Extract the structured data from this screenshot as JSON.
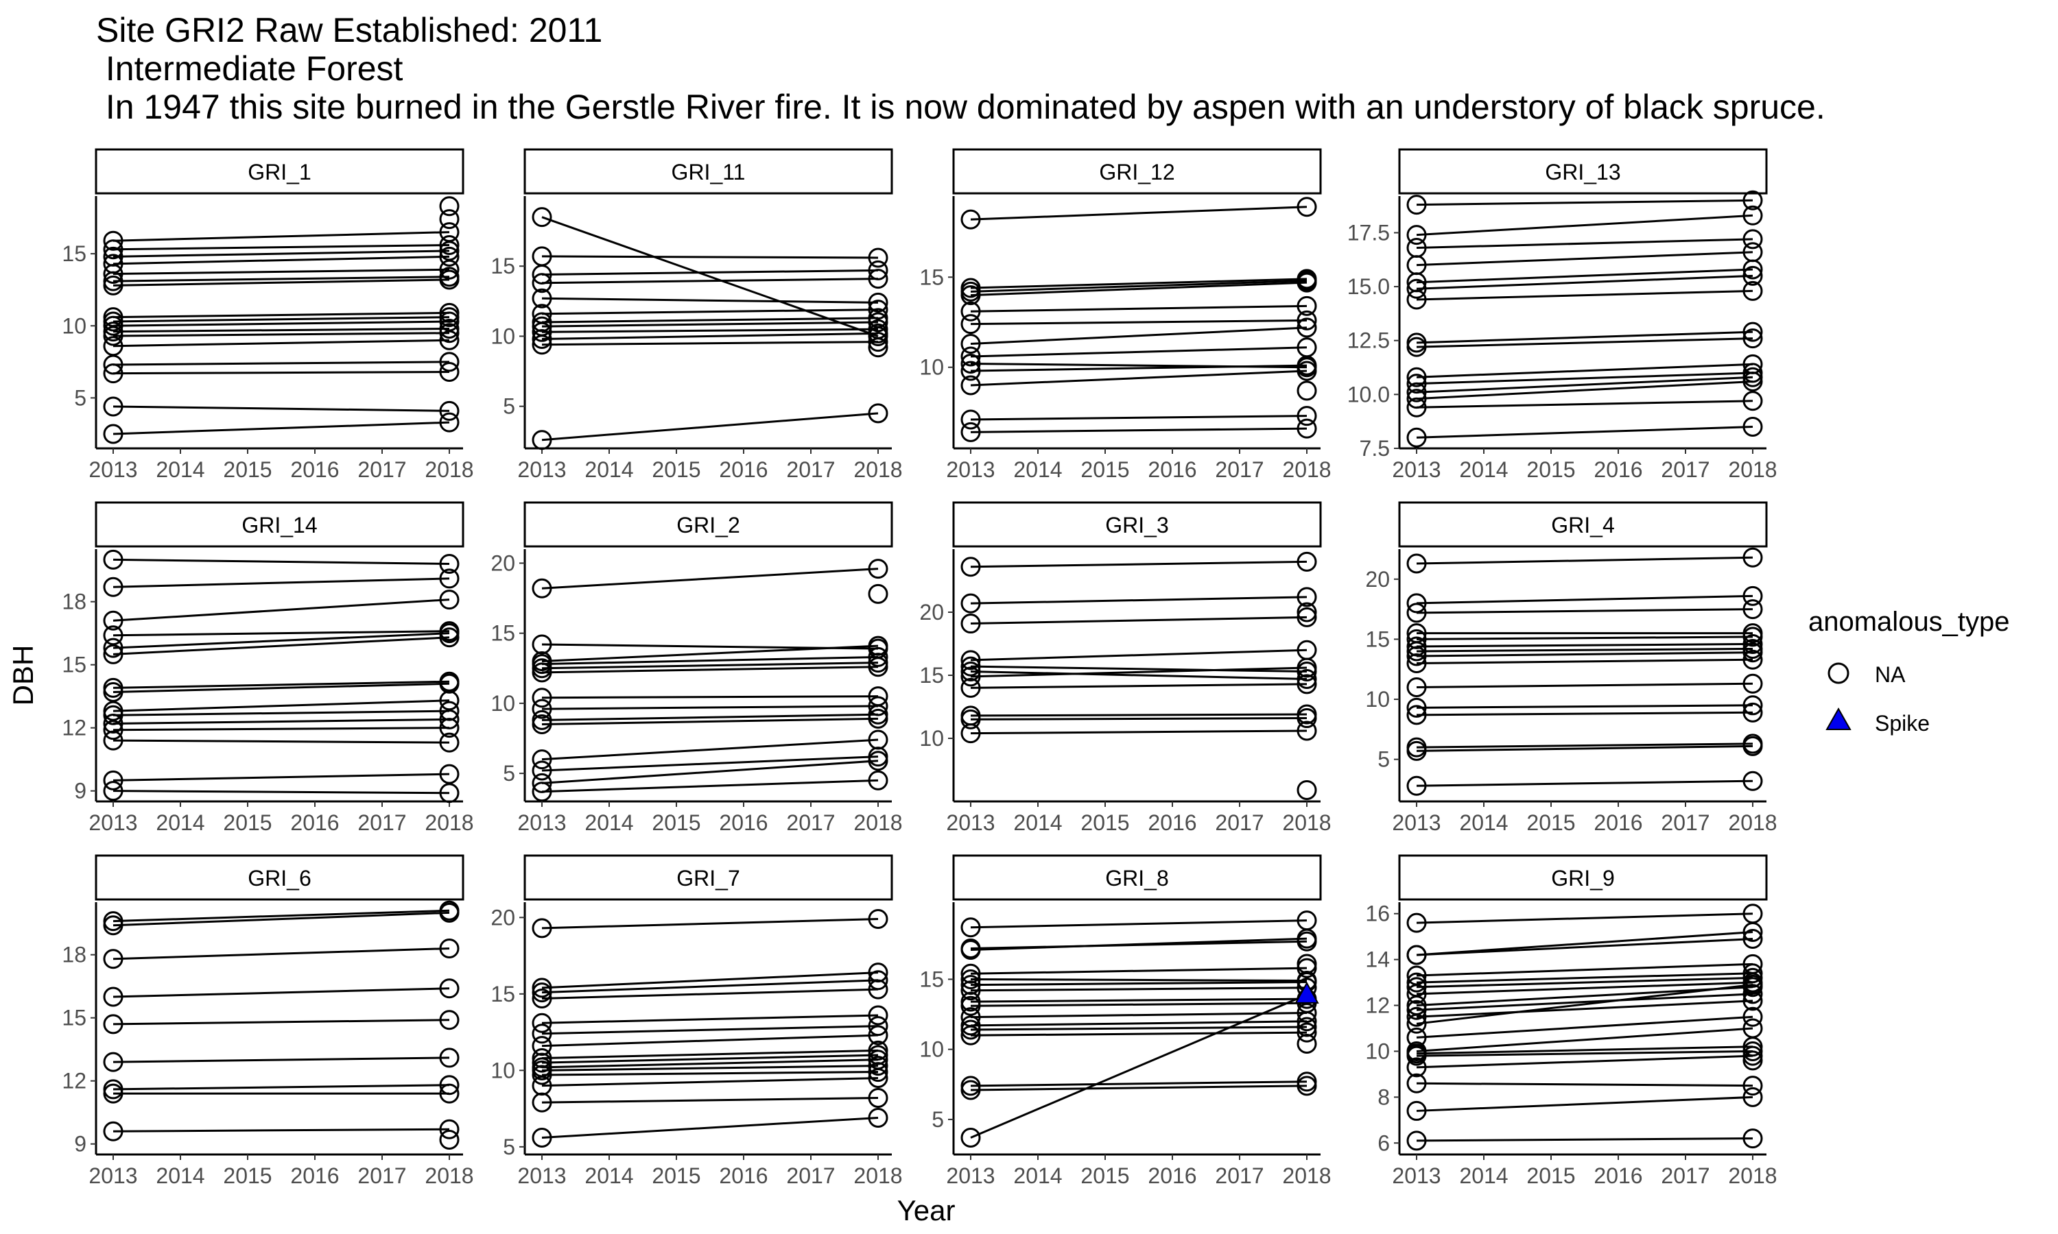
{
  "title": {
    "line1": "Site GRI2 Raw Established: 2011",
    "line2": " Intermediate Forest",
    "line3": " In 1947 this site burned in the Gerstle River fire. It is now dominated by aspen with an understory of black spruce."
  },
  "chart_data": {
    "type": "line",
    "facet_layout": "4 columns x 3 rows",
    "xlabel": "Year",
    "ylabel": "DBH",
    "x_ticks": [
      2013,
      2014,
      2015,
      2016,
      2017,
      2018
    ],
    "legend": {
      "title": "anomalous_type",
      "position": "right",
      "entries": [
        {
          "label": "NA",
          "shape": "open-circle",
          "color": "#000000"
        },
        {
          "label": "Spike",
          "shape": "filled-triangle",
          "color": "#0000ee"
        }
      ]
    },
    "grid": false,
    "panels": [
      {
        "label": "GRI_1",
        "ylim": [
          1.5,
          19
        ],
        "y_ticks": [
          5,
          10,
          15
        ],
        "pairs": [
          [
            15.9,
            16.5
          ],
          [
            15.3,
            15.6
          ],
          [
            14.8,
            15.2
          ],
          [
            14.3,
            14.8
          ],
          [
            13.6,
            13.9
          ],
          [
            13.1,
            13.4
          ],
          [
            12.8,
            13.2
          ],
          [
            10.6,
            10.9
          ],
          [
            10.3,
            10.6
          ],
          [
            10.0,
            10.3
          ],
          [
            9.6,
            9.8
          ],
          [
            9.3,
            9.5
          ],
          [
            8.6,
            9.0
          ],
          [
            7.3,
            7.5
          ],
          [
            6.7,
            6.8
          ],
          [
            4.4,
            4.1
          ],
          [
            2.5,
            3.3
          ]
        ],
        "extra": [
          {
            "x": 2018,
            "y": 18.3
          },
          {
            "x": 2018,
            "y": 17.4
          }
        ]
      },
      {
        "label": "GRI_11",
        "ylim": [
          2,
          20
        ],
        "y_ticks": [
          5,
          10,
          15
        ],
        "pairs": [
          [
            18.5,
            10.0
          ],
          [
            15.7,
            15.6
          ],
          [
            14.4,
            14.7
          ],
          [
            13.8,
            14.1
          ],
          [
            12.7,
            12.4
          ],
          [
            11.6,
            11.9
          ],
          [
            11.0,
            11.3
          ],
          [
            10.7,
            11.0
          ],
          [
            10.3,
            10.5
          ],
          [
            9.8,
            10.2
          ],
          [
            9.4,
            9.6
          ],
          [
            2.6,
            4.5
          ]
        ],
        "extra": [
          {
            "x": 2018,
            "y": 9.2
          }
        ]
      },
      {
        "label": "GRI_12",
        "ylim": [
          5.5,
          19.5
        ],
        "y_ticks": [
          10,
          15
        ],
        "pairs": [
          [
            18.2,
            18.9
          ],
          [
            14.4,
            14.9
          ],
          [
            14.2,
            14.8
          ],
          [
            14.0,
            14.7
          ],
          [
            13.1,
            13.4
          ],
          [
            12.4,
            12.6
          ],
          [
            11.3,
            12.2
          ],
          [
            10.6,
            11.1
          ],
          [
            10.2,
            10.0
          ],
          [
            9.8,
            10.1
          ],
          [
            9.0,
            9.8
          ],
          [
            7.1,
            7.3
          ],
          [
            6.4,
            6.6
          ]
        ],
        "extra": [
          {
            "x": 2018,
            "y": 8.7
          }
        ]
      },
      {
        "label": "GRI_13",
        "ylim": [
          7.5,
          19.2
        ],
        "y_ticks": [
          7.5,
          10.0,
          12.5,
          15.0,
          17.5
        ],
        "pairs": [
          [
            18.8,
            19.0
          ],
          [
            17.4,
            18.3
          ],
          [
            16.8,
            17.2
          ],
          [
            16.0,
            16.6
          ],
          [
            15.2,
            15.8
          ],
          [
            14.9,
            15.5
          ],
          [
            14.4,
            14.8
          ],
          [
            12.4,
            12.9
          ],
          [
            12.2,
            12.6
          ],
          [
            10.8,
            11.4
          ],
          [
            10.5,
            11.0
          ],
          [
            10.1,
            10.8
          ],
          [
            9.8,
            10.6
          ],
          [
            9.4,
            9.7
          ],
          [
            8.0,
            8.5
          ]
        ],
        "extra": []
      },
      {
        "label": "GRI_14",
        "ylim": [
          8.5,
          20.5
        ],
        "y_ticks": [
          9,
          12,
          15,
          18
        ],
        "pairs": [
          [
            20.0,
            19.8
          ],
          [
            18.7,
            19.1
          ],
          [
            17.1,
            18.1
          ],
          [
            16.4,
            16.6
          ],
          [
            15.8,
            16.5
          ],
          [
            15.5,
            16.3
          ],
          [
            13.9,
            14.2
          ],
          [
            13.7,
            14.1
          ],
          [
            12.8,
            13.3
          ],
          [
            12.6,
            12.8
          ],
          [
            12.2,
            12.4
          ],
          [
            11.9,
            12.0
          ],
          [
            11.4,
            11.3
          ],
          [
            9.5,
            9.8
          ],
          [
            9.0,
            8.9
          ]
        ],
        "extra": []
      },
      {
        "label": "GRI_2",
        "ylim": [
          3,
          21
        ],
        "y_ticks": [
          5,
          10,
          15,
          20
        ],
        "pairs": [
          [
            18.2,
            19.6
          ],
          [
            14.2,
            13.9
          ],
          [
            13.0,
            14.1
          ],
          [
            12.8,
            13.3
          ],
          [
            12.5,
            12.9
          ],
          [
            12.2,
            12.6
          ],
          [
            10.4,
            10.5
          ],
          [
            9.6,
            9.8
          ],
          [
            8.8,
            9.2
          ],
          [
            8.5,
            8.9
          ],
          [
            6.0,
            7.4
          ],
          [
            5.2,
            6.2
          ],
          [
            4.3,
            5.9
          ],
          [
            3.7,
            4.5
          ]
        ],
        "extra": [
          {
            "x": 2018,
            "y": 17.8
          }
        ]
      },
      {
        "label": "GRI_3",
        "ylim": [
          5,
          25
        ],
        "y_ticks": [
          10,
          15,
          20
        ],
        "pairs": [
          [
            23.6,
            24.0
          ],
          [
            20.7,
            21.2
          ],
          [
            19.1,
            19.6
          ],
          [
            16.2,
            17.0
          ],
          [
            15.7,
            15.3
          ],
          [
            15.3,
            14.7
          ],
          [
            14.9,
            15.6
          ],
          [
            14.0,
            14.3
          ],
          [
            11.8,
            11.9
          ],
          [
            11.5,
            11.6
          ],
          [
            10.4,
            10.6
          ]
        ],
        "extra": [
          {
            "x": 2018,
            "y": 5.9
          },
          {
            "x": 2018,
            "y": 20.0
          }
        ]
      },
      {
        "label": "GRI_4",
        "ylim": [
          1.5,
          22.5
        ],
        "y_ticks": [
          5,
          10,
          15,
          20
        ],
        "pairs": [
          [
            21.3,
            21.8
          ],
          [
            18.0,
            18.6
          ],
          [
            17.2,
            17.5
          ],
          [
            15.5,
            15.5
          ],
          [
            15.0,
            15.2
          ],
          [
            14.4,
            14.6
          ],
          [
            14.0,
            14.2
          ],
          [
            13.6,
            13.9
          ],
          [
            13.0,
            13.3
          ],
          [
            11.0,
            11.3
          ],
          [
            9.3,
            9.5
          ],
          [
            8.7,
            8.9
          ],
          [
            6.0,
            6.3
          ],
          [
            5.7,
            6.1
          ],
          [
            2.8,
            3.2
          ]
        ],
        "extra": []
      },
      {
        "label": "GRI_6",
        "ylim": [
          8.5,
          20.5
        ],
        "y_ticks": [
          9,
          12,
          15,
          18
        ],
        "pairs": [
          [
            19.6,
            20.1
          ],
          [
            19.4,
            20.0
          ],
          [
            17.8,
            18.3
          ],
          [
            16.0,
            16.4
          ],
          [
            14.7,
            14.9
          ],
          [
            12.9,
            13.1
          ],
          [
            11.6,
            11.8
          ],
          [
            11.4,
            11.4
          ],
          [
            9.6,
            9.7
          ]
        ],
        "extra": [
          {
            "x": 2018,
            "y": 9.2
          }
        ]
      },
      {
        "label": "GRI_7",
        "ylim": [
          4.5,
          21
        ],
        "y_ticks": [
          5,
          10,
          15,
          20
        ],
        "pairs": [
          [
            19.3,
            19.9
          ],
          [
            15.4,
            16.4
          ],
          [
            15.1,
            15.9
          ],
          [
            14.7,
            15.3
          ],
          [
            13.1,
            13.6
          ],
          [
            12.4,
            12.9
          ],
          [
            11.6,
            12.3
          ],
          [
            10.8,
            11.3
          ],
          [
            10.5,
            11.0
          ],
          [
            10.2,
            10.7
          ],
          [
            10.0,
            10.3
          ],
          [
            9.7,
            9.9
          ],
          [
            9.0,
            9.5
          ],
          [
            7.9,
            8.2
          ],
          [
            5.6,
            6.9
          ]
        ],
        "extra": []
      },
      {
        "label": "GRI_8",
        "ylim": [
          2.5,
          20.5
        ],
        "y_ticks": [
          5,
          10,
          15
        ],
        "pairs": [
          [
            18.7,
            19.2
          ],
          [
            17.2,
            17.7
          ],
          [
            17.1,
            17.9
          ],
          [
            15.4,
            15.8
          ],
          [
            15.0,
            14.9
          ],
          [
            14.6,
            14.8
          ],
          [
            14.2,
            14.4
          ],
          [
            13.4,
            13.6
          ],
          [
            13.1,
            13.3
          ],
          [
            12.3,
            12.6
          ],
          [
            11.7,
            12.0
          ],
          [
            11.4,
            11.6
          ],
          [
            11.0,
            11.2
          ],
          [
            7.4,
            7.7
          ],
          [
            7.1,
            7.4
          ]
        ],
        "spike": {
          "from": [
            2013,
            3.7
          ],
          "to": [
            2018,
            13.9
          ]
        },
        "extra": [
          {
            "x": 2018,
            "y": 10.4
          },
          {
            "x": 2018,
            "y": 16.1
          }
        ]
      },
      {
        "label": "GRI_9",
        "ylim": [
          5.5,
          16.5
        ],
        "y_ticks": [
          6,
          8,
          10,
          12,
          14,
          16
        ],
        "pairs": [
          [
            15.6,
            16.0
          ],
          [
            14.2,
            15.2
          ],
          [
            14.2,
            14.9
          ],
          [
            13.3,
            13.8
          ],
          [
            13.0,
            13.4
          ],
          [
            12.8,
            13.2
          ],
          [
            12.5,
            13.0
          ],
          [
            12.0,
            12.8
          ],
          [
            11.8,
            12.5
          ],
          [
            11.5,
            12.2
          ],
          [
            11.2,
            12.9
          ],
          [
            10.6,
            11.5
          ],
          [
            10.0,
            11.0
          ],
          [
            9.9,
            10.2
          ],
          [
            9.8,
            10.0
          ],
          [
            9.3,
            9.8
          ],
          [
            8.6,
            8.5
          ],
          [
            7.4,
            8.0
          ],
          [
            6.1,
            6.2
          ]
        ],
        "extra": [
          {
            "x": 2018,
            "y": 9.6
          }
        ]
      }
    ]
  }
}
